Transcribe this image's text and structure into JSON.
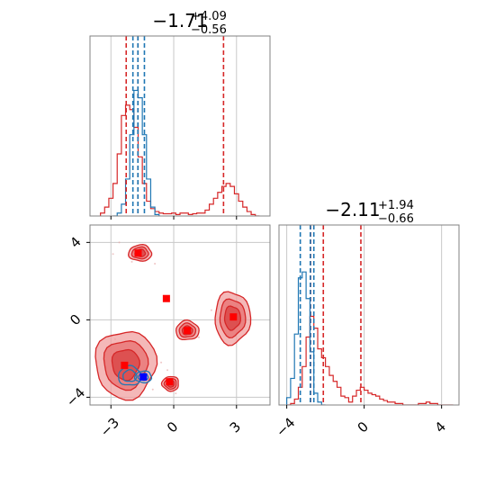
{
  "colors": {
    "red": "#d62728",
    "red_fill": "#f0a0a0",
    "red_dark": "#e34a4a",
    "blue": "#1f77b4",
    "grid": "#c8c8c8",
    "axis": "#808080",
    "marker_red": "#ff0000",
    "marker_blue": "#0000ff"
  },
  "chart_data": {
    "type": "corner",
    "grid": true,
    "parameters": [
      {
        "range": [
          -4,
          4.6
        ],
        "ticks": [
          -3,
          0,
          3
        ],
        "tick_labels": [
          "−3",
          "0",
          "3"
        ]
      },
      {
        "range": [
          -4.4,
          4.9
        ],
        "ticks": [
          -4,
          0,
          4
        ],
        "tick_labels": [
          "−4",
          "0",
          "4"
        ]
      }
    ],
    "titles": [
      {
        "main": "−1.71",
        "sup": "+4.09",
        "sub": "−0.56"
      },
      {
        "main": "−2.11",
        "sup": "+1.94",
        "sub": "−0.66"
      }
    ],
    "series": [
      {
        "color": "red",
        "histogram_p0": {
          "bins": [
            -3.5,
            -3.3,
            -3.1,
            -2.9,
            -2.7,
            -2.5,
            -2.3,
            -2.1,
            -1.9,
            -1.7,
            -1.5,
            -1.3,
            -1.1,
            -0.9,
            -0.7,
            -0.5,
            -0.3,
            -0.1,
            0.1,
            0.3,
            0.5,
            0.7,
            0.9,
            1.1,
            1.3,
            1.5,
            1.7,
            1.9,
            2.1,
            2.3,
            2.5,
            2.7,
            2.9,
            3.1,
            3.3,
            3.5,
            3.7,
            3.9,
            4.1
          ],
          "counts": [
            0.02,
            0.06,
            0.12,
            0.22,
            0.42,
            0.68,
            0.75,
            0.72,
            0.6,
            0.4,
            0.22,
            0.1,
            0.05,
            0.03,
            0.02,
            0.015,
            0.015,
            0.02,
            0.01,
            0.02,
            0.02,
            0.01,
            0.015,
            0.02,
            0.02,
            0.04,
            0.08,
            0.12,
            0.16,
            0.2,
            0.22,
            0.2,
            0.15,
            0.1,
            0.06,
            0.03,
            0.01,
            0.0
          ]
        },
        "histogram_p1": {
          "bins": [
            -4.0,
            -3.8,
            -3.6,
            -3.4,
            -3.2,
            -3.0,
            -2.8,
            -2.6,
            -2.4,
            -2.2,
            -2.0,
            -1.8,
            -1.6,
            -1.4,
            -1.2,
            -1.0,
            -0.8,
            -0.6,
            -0.4,
            -0.2,
            0.0,
            0.2,
            0.4,
            0.6,
            0.8,
            1.0,
            1.2,
            1.4,
            1.6,
            1.8,
            2.0,
            2.2,
            2.4,
            2.6,
            2.8,
            3.0,
            3.2,
            3.4,
            3.6,
            3.8,
            4.0,
            4.2,
            4.4,
            4.6
          ],
          "counts": [
            0.0,
            0.01,
            0.04,
            0.12,
            0.26,
            0.46,
            0.6,
            0.52,
            0.38,
            0.32,
            0.26,
            0.2,
            0.16,
            0.12,
            0.06,
            0.05,
            0.02,
            0.06,
            0.1,
            0.12,
            0.1,
            0.08,
            0.07,
            0.06,
            0.04,
            0.03,
            0.02,
            0.02,
            0.01,
            0.01,
            0.0,
            0.0,
            0.0,
            0.0,
            0.01,
            0.01,
            0.02,
            0.01,
            0.01,
            0.0,
            0.0,
            0.0,
            0.0
          ]
        },
        "quantiles_p0": [
          -2.27,
          -1.71,
          2.38
        ],
        "quantiles_p1": [
          -2.77,
          -2.11,
          -0.17
        ],
        "markers": [
          [
            -1.7,
            3.45
          ],
          [
            -0.35,
            1.1
          ],
          [
            0.65,
            -0.55
          ],
          [
            -2.35,
            -2.35
          ],
          [
            -0.2,
            -3.2
          ],
          [
            2.85,
            0.15
          ]
        ],
        "blobs": [
          {
            "cx": -2.3,
            "cy": -2.3,
            "rx": 1.45,
            "ry": 1.75
          },
          {
            "cx": 2.8,
            "cy": 0.1,
            "rx": 0.85,
            "ry": 1.35
          },
          {
            "cx": 0.65,
            "cy": -0.55,
            "rx": 0.55,
            "ry": 0.5
          },
          {
            "cx": -1.6,
            "cy": 3.45,
            "rx": 0.55,
            "ry": 0.42
          },
          {
            "cx": -0.15,
            "cy": -3.3,
            "rx": 0.4,
            "ry": 0.38
          }
        ]
      },
      {
        "color": "blue",
        "histogram_p0": {
          "bins": [
            -2.9,
            -2.7,
            -2.5,
            -2.3,
            -2.1,
            -1.9,
            -1.7,
            -1.5,
            -1.3,
            -1.1,
            -0.9,
            -0.7
          ],
          "counts": [
            0.0,
            0.02,
            0.08,
            0.25,
            0.55,
            0.85,
            0.8,
            0.55,
            0.25,
            0.06,
            0.01
          ]
        },
        "histogram_p1": {
          "bins": [
            -4.0,
            -3.8,
            -3.6,
            -3.4,
            -3.2,
            -3.0,
            -2.8,
            -2.6,
            -2.4,
            -2.2,
            -2.0
          ],
          "counts": [
            0.05,
            0.18,
            0.48,
            0.86,
            0.9,
            0.72,
            0.36,
            0.08,
            0.02,
            0.0
          ]
        },
        "quantiles_p0": [
          -1.95,
          -1.71,
          -1.4
        ],
        "quantiles_p1": [
          -3.3,
          -2.78,
          -2.6
        ],
        "markers": [
          [
            -1.45,
            -2.95
          ]
        ],
        "blobs": [
          {
            "cx": -2.1,
            "cy": -2.9,
            "rx": 0.55,
            "ry": 0.5
          },
          {
            "cx": -1.45,
            "cy": -2.95,
            "rx": 0.4,
            "ry": 0.3
          }
        ]
      }
    ]
  }
}
